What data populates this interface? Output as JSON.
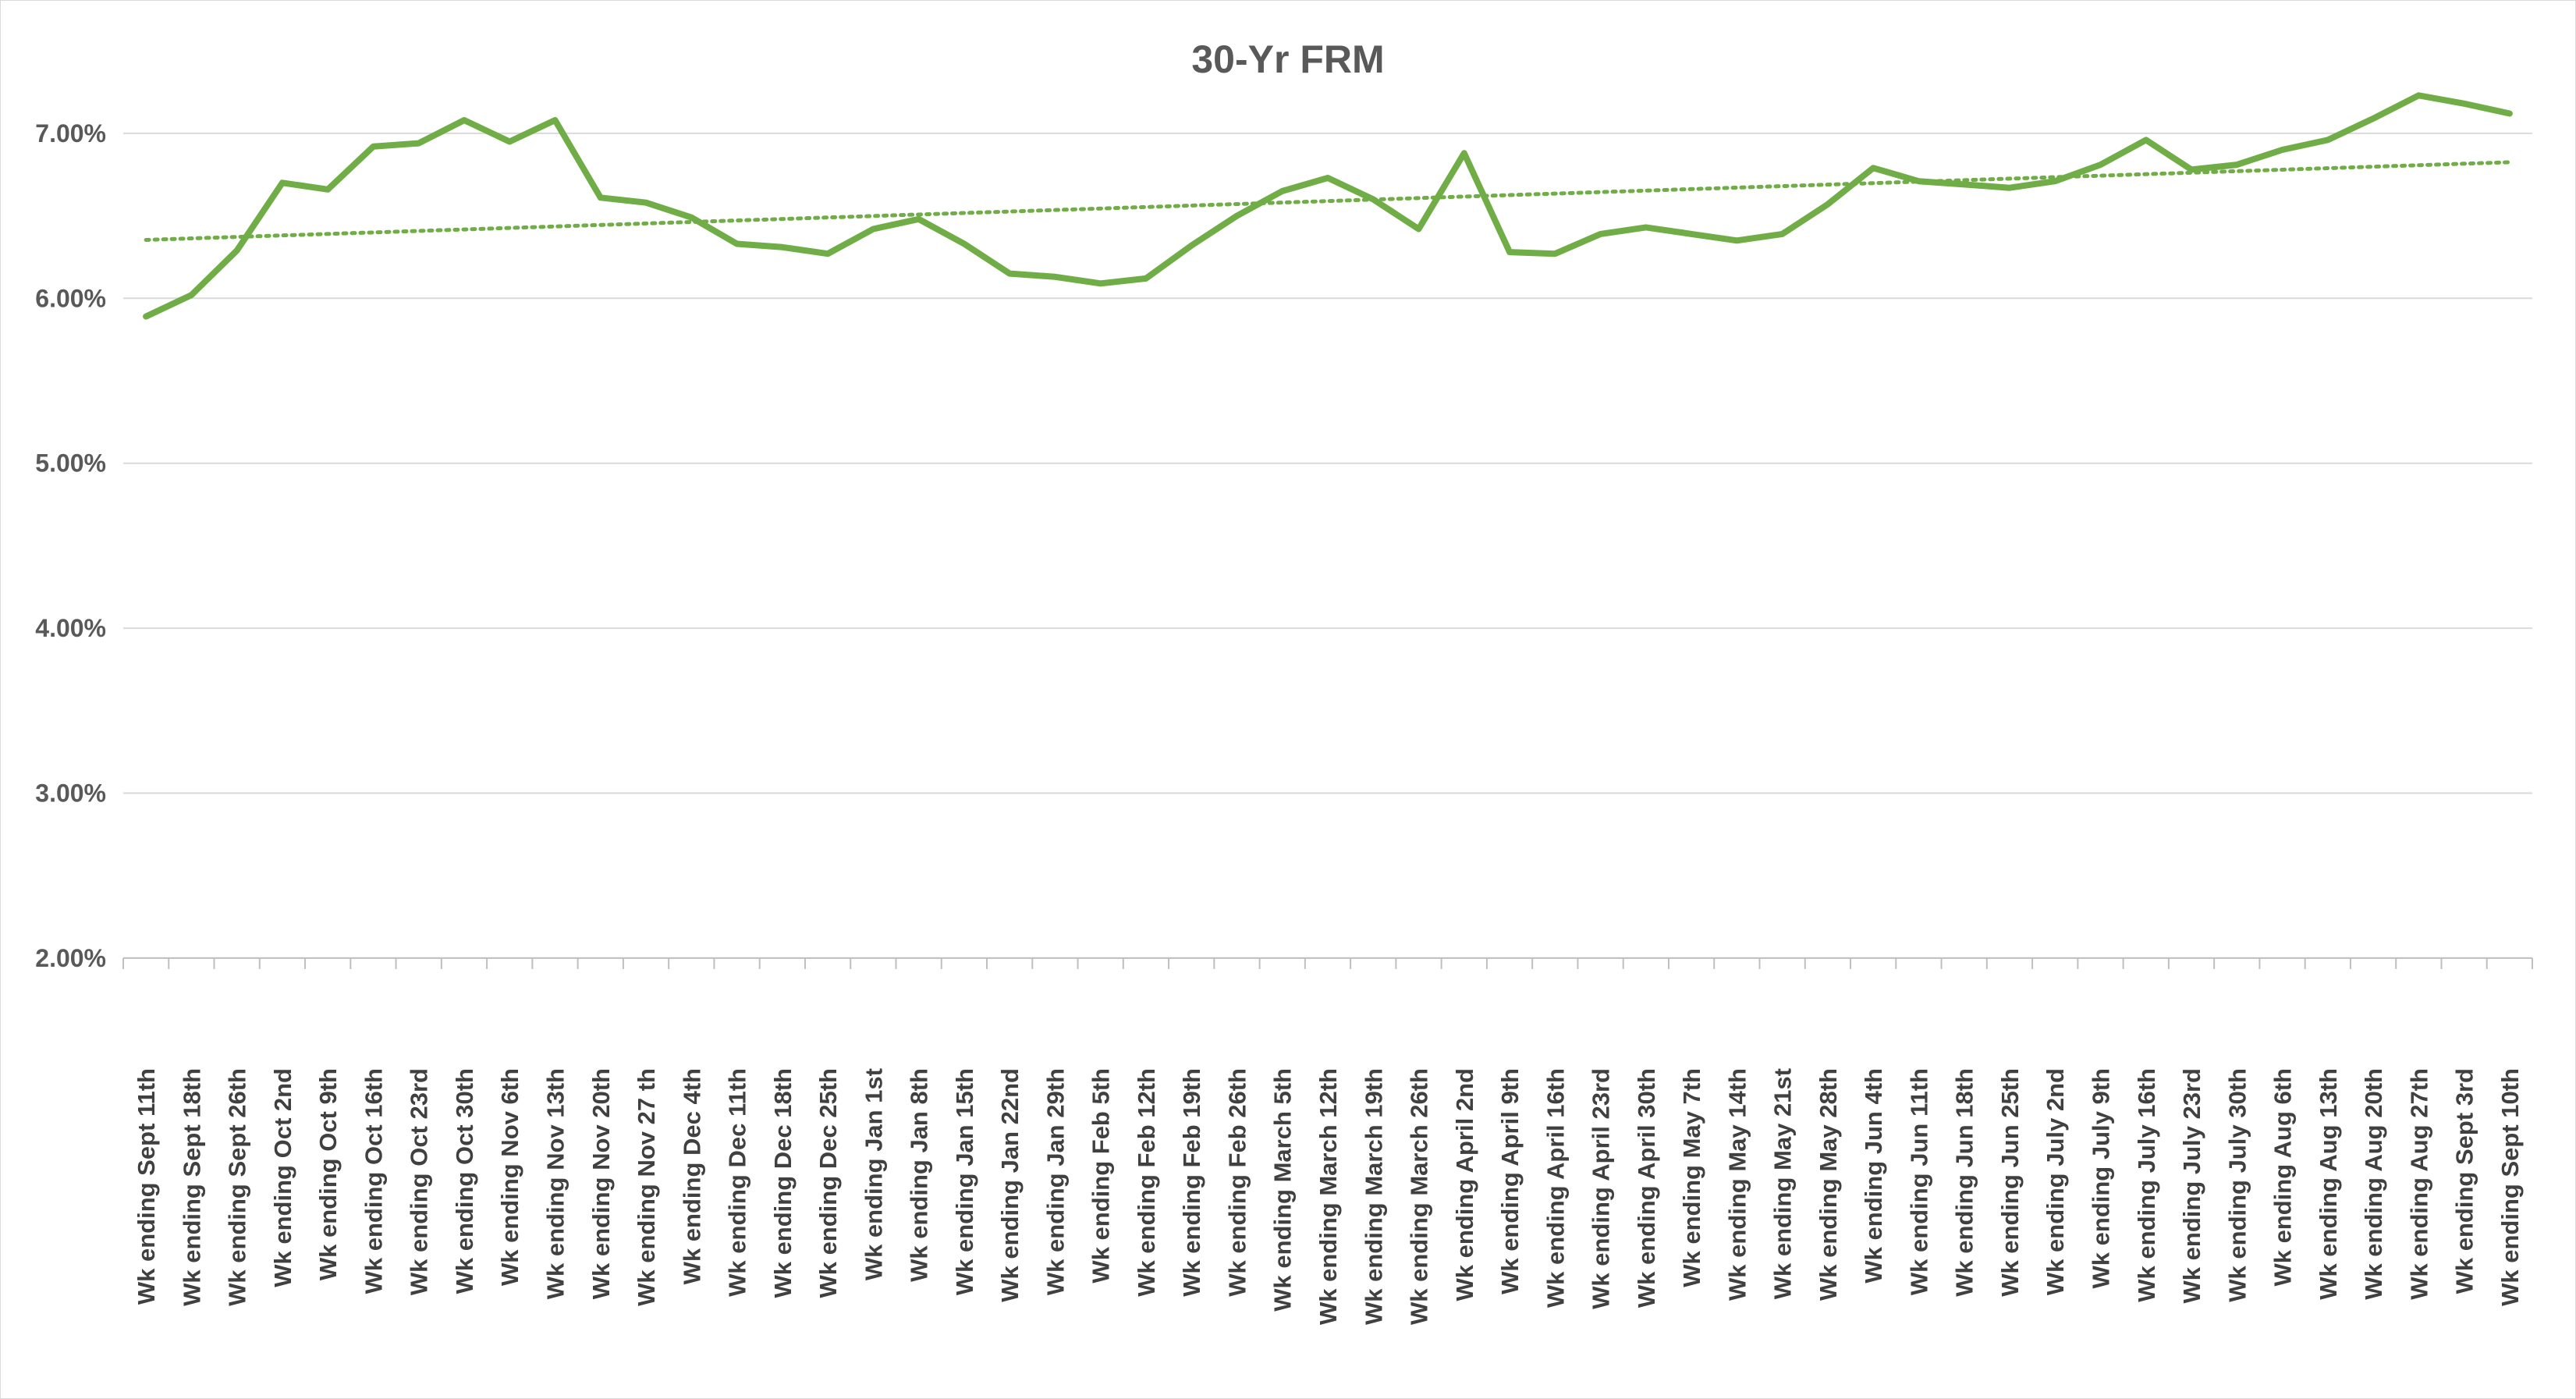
{
  "chart_data": {
    "type": "line",
    "title": "30-Yr FRM",
    "xlabel": "",
    "ylabel": "",
    "ylim": [
      0.02,
      0.075
    ],
    "yticks": [
      "2.00%",
      "3.00%",
      "4.00%",
      "5.00%",
      "6.00%",
      "7.00%"
    ],
    "ytick_values": [
      0.02,
      0.03,
      0.04,
      0.05,
      0.06,
      0.07
    ],
    "grid": true,
    "legend": "none",
    "categories": [
      "Wk ending Sept 11th",
      "Wk ending Sept 18th",
      "Wk ending Sept 26th",
      "Wk ending Oct 2nd",
      "Wk ending Oct 9th",
      "Wk ending Oct 16th",
      "Wk ending Oct 23rd",
      "Wk ending Oct 30th",
      "Wk ending Nov 6th",
      "Wk ending Nov 13th",
      "Wk ending Nov 20th",
      "Wk ending Nov 27 th",
      "Wk ending Dec 4th",
      "Wk ending Dec 11th",
      "Wk ending Dec 18th",
      "Wk ending Dec 25th",
      "Wk ending Jan 1st",
      "Wk ending Jan 8th",
      "Wk ending Jan 15th",
      "Wk ending Jan 22nd",
      "Wk ending Jan 29th",
      "Wk ending Feb 5th",
      "Wk ending Feb 12th",
      "Wk ending Feb 19th",
      "Wk ending Feb 26th",
      "Wk ending March 5th",
      "Wk ending March 12th",
      "Wk ending March 19th",
      "Wk ending March 26th",
      "Wk ending April 2nd",
      "Wk ending April 9th",
      "Wk ending April 16th",
      "Wk ending April 23rd",
      "Wk ending April 30th",
      "Wk ending May 7th",
      "Wk ending May 14th",
      "Wk ending May 21st",
      "Wk ending May 28th",
      "Wk ending Jun 4th",
      "Wk ending Jun 11th",
      "Wk ending Jun 18th",
      "Wk ending Jun 25th",
      "Wk ending July 2nd",
      "Wk ending July 9th",
      "Wk ending July 16th",
      "Wk ending July 23rd",
      "Wk ending July 30th",
      "Wk ending Aug 6th",
      "Wk ending Aug 13th",
      "Wk ending Aug 20th",
      "Wk ending Aug 27th",
      "Wk ending Sept 3rd",
      "Wk ending Sept 10th"
    ],
    "series": [
      {
        "values": [
          0.0589,
          0.0602,
          0.0629,
          0.067,
          0.0666,
          0.0692,
          0.0694,
          0.0708,
          0.0695,
          0.0708,
          0.0661,
          0.0658,
          0.0649,
          0.0633,
          0.0631,
          0.0627,
          0.0642,
          0.0648,
          0.0633,
          0.0615,
          0.0613,
          0.0609,
          0.0612,
          0.0632,
          0.065,
          0.0665,
          0.0673,
          0.066,
          0.0642,
          0.0688,
          0.0628,
          0.0627,
          0.0639,
          0.0643,
          0.0639,
          0.0635,
          0.0639,
          0.0657,
          0.0679,
          0.0671,
          0.0669,
          0.0667,
          0.0671,
          0.0681,
          0.0696,
          0.0678,
          0.0681,
          0.069,
          0.0696,
          0.0709,
          0.0723,
          0.0718,
          0.0712
        ],
        "color": "#70ad47"
      }
    ],
    "trendline": {
      "type": "linear",
      "start": 0.06354,
      "end": 0.06825,
      "color": "#70ad47",
      "style": "dotted"
    },
    "colors": {
      "gridline": "#d9d9d9",
      "axis": "#bfbfbf",
      "text": "#595959"
    }
  }
}
